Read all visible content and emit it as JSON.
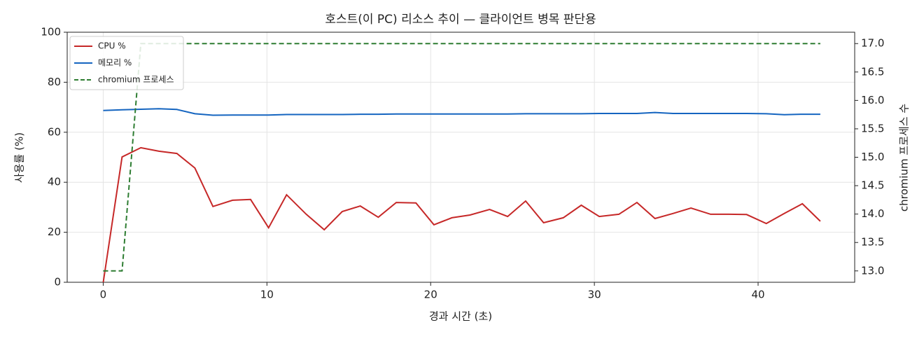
{
  "chart_data": {
    "type": "line",
    "title": "호스트(이 PC) 리소스 추이 — 클라이언트 병목 판단용",
    "xlabel": "경과 시간 (초)",
    "ylabel": "사용률 (%)",
    "y2label": "chromium 프로세스 수",
    "x": [
      0,
      1.15,
      2.3,
      3.4,
      4.5,
      5.6,
      6.7,
      7.9,
      9.0,
      10.1,
      11.2,
      12.4,
      13.5,
      14.6,
      15.7,
      16.8,
      17.9,
      19.1,
      20.2,
      21.3,
      22.4,
      23.6,
      24.7,
      25.8,
      26.9,
      28.1,
      29.2,
      30.3,
      31.5,
      32.6,
      33.7,
      34.8,
      35.9,
      37.1,
      38.2,
      39.3,
      40.5,
      41.6,
      42.7,
      43.8
    ],
    "series": [
      {
        "name": "CPU %",
        "color": "#c62828",
        "style": "solid",
        "values": [
          0,
          50.1,
          53.8,
          52.4,
          51.5,
          45.7,
          30.3,
          32.8,
          33.1,
          21.8,
          35.0,
          27.2,
          21.0,
          28.3,
          30.5,
          26.0,
          31.9,
          31.7,
          23.0,
          25.8,
          26.9,
          29.1,
          26.3,
          32.5,
          23.8,
          25.8,
          30.8,
          26.3,
          27.2,
          31.9,
          25.5,
          27.5,
          29.7,
          27.2,
          27.2,
          27.1,
          23.5,
          27.5,
          31.4,
          24.4
        ]
      },
      {
        "name": "메모리 %",
        "color": "#1565c0",
        "style": "solid",
        "values": [
          68.7,
          69.0,
          69.2,
          69.4,
          69.1,
          67.4,
          66.8,
          66.9,
          66.9,
          66.9,
          67.1,
          67.1,
          67.1,
          67.1,
          67.2,
          67.2,
          67.3,
          67.3,
          67.3,
          67.3,
          67.3,
          67.3,
          67.3,
          67.4,
          67.4,
          67.4,
          67.4,
          67.5,
          67.5,
          67.5,
          67.9,
          67.5,
          67.5,
          67.5,
          67.5,
          67.5,
          67.4,
          67.0,
          67.2,
          67.2
        ]
      },
      {
        "name": "chromium 프로세스",
        "color": "#2e7d32",
        "style": "dashed",
        "axis": "y2",
        "values": [
          13,
          13,
          17,
          17,
          17,
          17,
          17,
          17,
          17,
          17,
          17,
          17,
          17,
          17,
          17,
          17,
          17,
          17,
          17,
          17,
          17,
          17,
          17,
          17,
          17,
          17,
          17,
          17,
          17,
          17,
          17,
          17,
          17,
          17,
          17,
          17,
          17,
          17,
          17,
          17
        ]
      }
    ],
    "xlim": [
      -2.2,
      45.9
    ],
    "xticks": [
      0,
      10,
      20,
      30,
      40
    ],
    "ylim": [
      0,
      100
    ],
    "yticks": [
      0,
      20,
      40,
      60,
      80,
      100
    ],
    "y2lim": [
      12.8,
      17.2
    ],
    "y2ticks": [
      {
        "value": 13,
        "label": "13.0"
      },
      13.5,
      {
        "value": 14,
        "label": "14.0"
      },
      14.5,
      {
        "value": 15,
        "label": "15.0"
      },
      15.5,
      {
        "value": 16,
        "label": "16.0"
      },
      16.5,
      {
        "value": 17,
        "label": "17.0"
      }
    ],
    "grid": true,
    "legend": "upper left"
  }
}
